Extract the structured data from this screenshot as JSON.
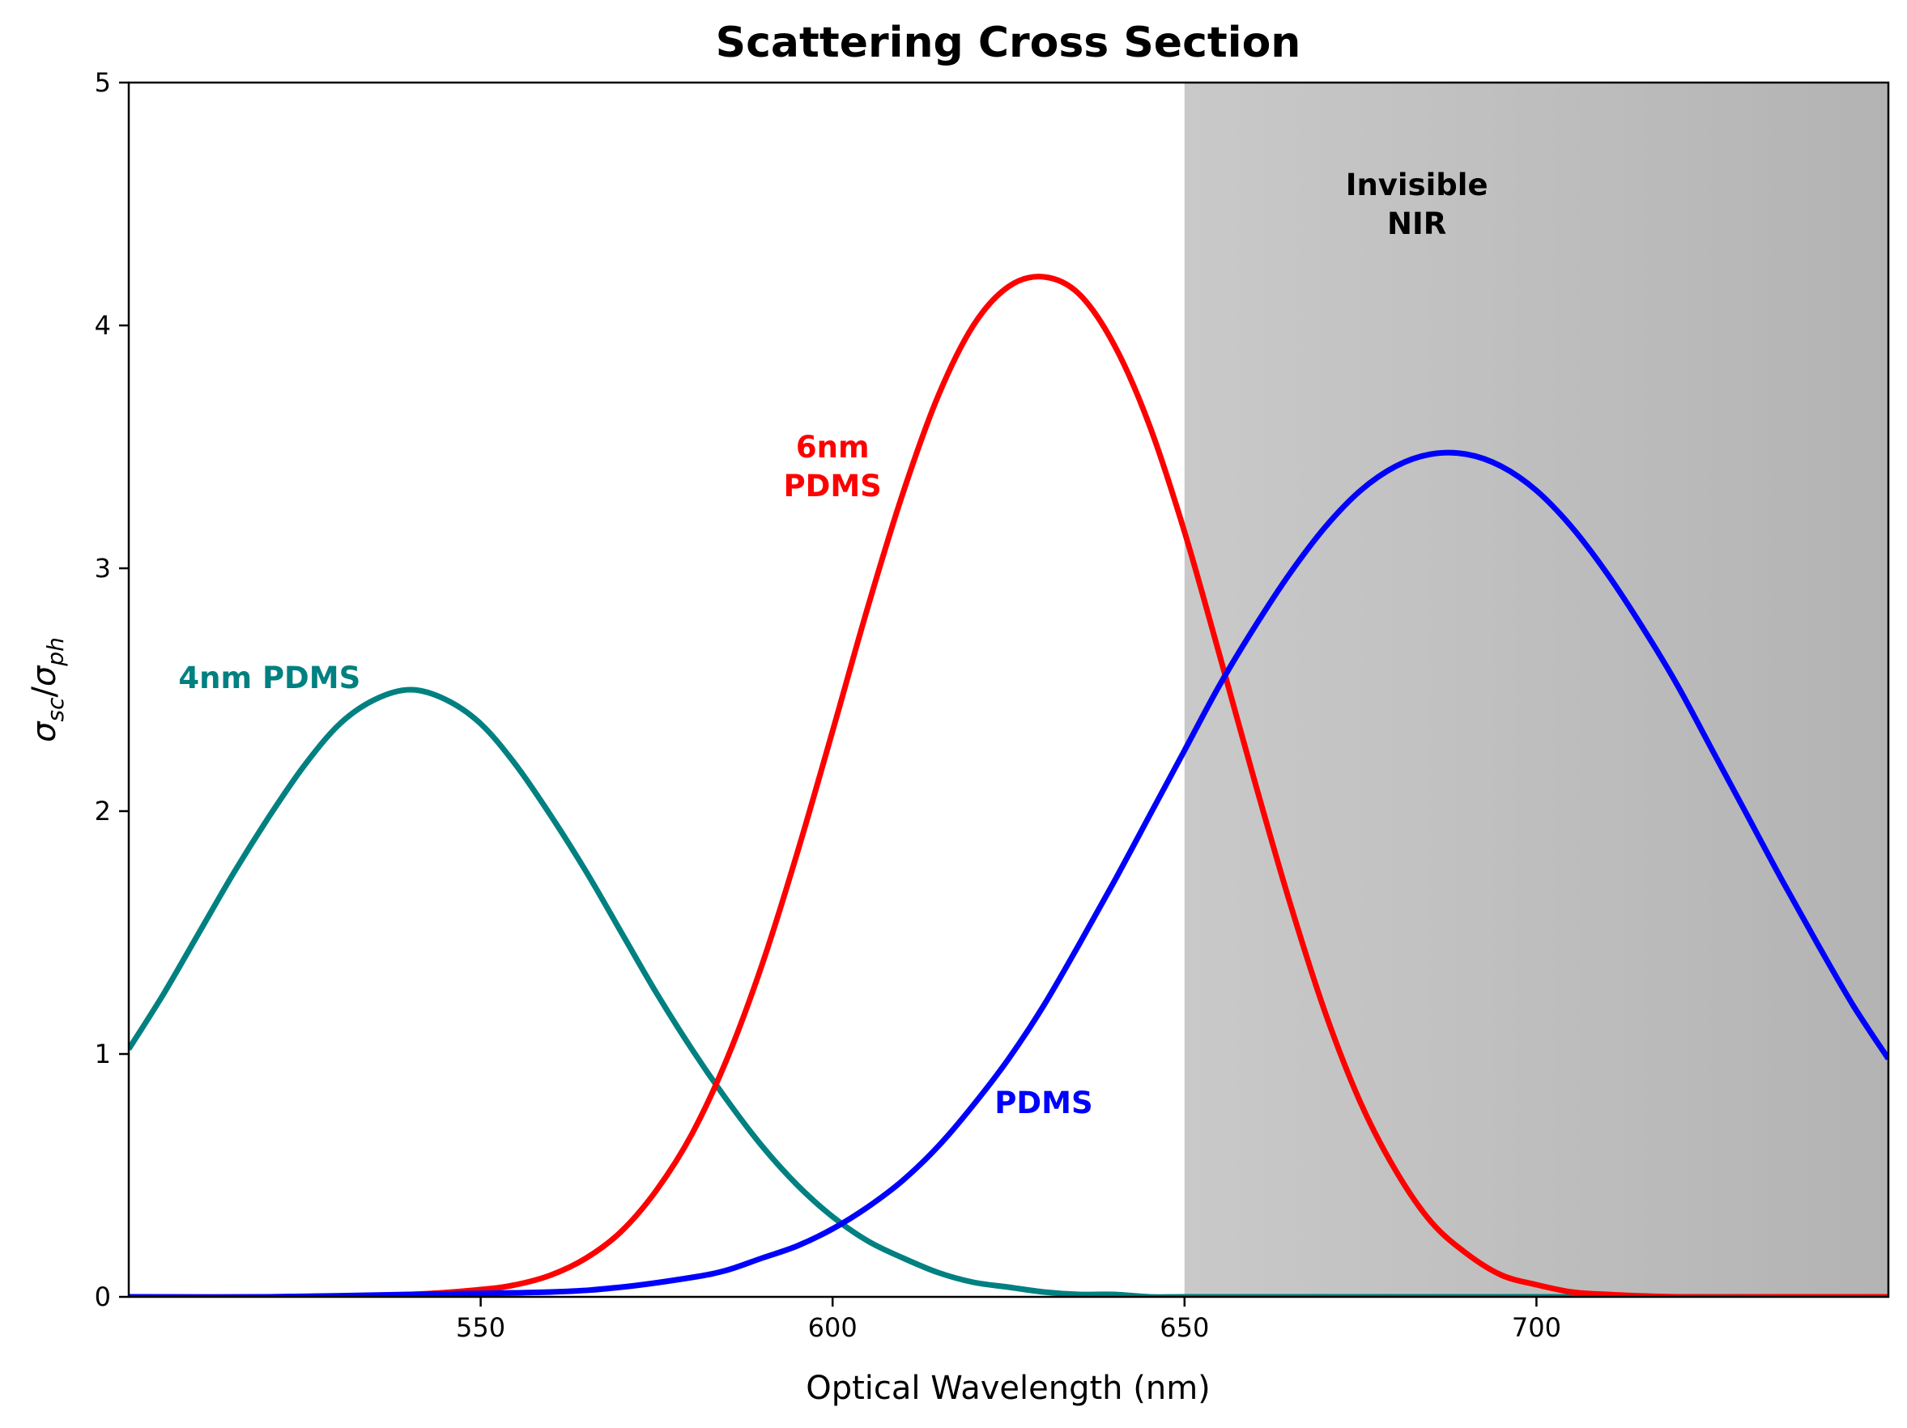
{
  "chart_data": {
    "type": "line",
    "title": "Scattering Cross Section",
    "xlabel": "Optical Wavelength (nm)",
    "ylabel_parts": {
      "sym1": "σ",
      "sub1": "sc",
      "slash": "/",
      "sym2": "σ",
      "sub2": "ph"
    },
    "xlim": [
      500,
      750
    ],
    "ylim": [
      0,
      5
    ],
    "xticks": [
      550,
      600,
      650,
      700
    ],
    "yticks": [
      0,
      1,
      2,
      3,
      4,
      5
    ],
    "grid": false,
    "shaded_region": {
      "x_start": 650,
      "x_end": 750,
      "label_lines": [
        "Invisible",
        "NIR"
      ],
      "label_x": 683,
      "label_y": 4.5,
      "color_left": "#c9c9c9",
      "color_right": "#b3b3b3"
    },
    "series": [
      {
        "name": "4nm PDMS",
        "color": "#008080",
        "label_lines": [
          "4nm PDMS"
        ],
        "label_x": 520,
        "label_y": 2.55,
        "x": [
          500,
          505,
          510,
          515,
          520,
          525,
          530,
          535,
          540,
          545,
          550,
          555,
          560,
          565,
          570,
          575,
          580,
          585,
          590,
          595,
          600,
          605,
          610,
          615,
          620,
          625,
          630,
          635,
          640,
          645,
          650,
          660,
          670,
          680,
          700,
          720,
          750
        ],
        "y": [
          1.02,
          1.25,
          1.5,
          1.75,
          1.98,
          2.19,
          2.36,
          2.46,
          2.5,
          2.46,
          2.36,
          2.19,
          1.98,
          1.75,
          1.5,
          1.25,
          1.02,
          0.81,
          0.62,
          0.46,
          0.33,
          0.23,
          0.16,
          0.1,
          0.06,
          0.04,
          0.02,
          0.01,
          0.01,
          0.0,
          0.0,
          0.0,
          0.0,
          0.0,
          0.0,
          0.0,
          0.0
        ]
      },
      {
        "name": "6nm PDMS",
        "color": "#ff0000",
        "label_lines": [
          "6nm",
          "PDMS"
        ],
        "label_x": 600,
        "label_y": 3.42,
        "x": [
          500,
          520,
          540,
          550,
          555,
          560,
          565,
          570,
          575,
          580,
          585,
          590,
          595,
          600,
          605,
          610,
          615,
          620,
          625,
          630,
          635,
          640,
          645,
          650,
          655,
          660,
          665,
          670,
          675,
          680,
          685,
          690,
          695,
          700,
          705,
          710,
          720,
          735,
          750
        ],
        "y": [
          0.0,
          0.0,
          0.01,
          0.03,
          0.05,
          0.09,
          0.16,
          0.27,
          0.44,
          0.67,
          0.98,
          1.37,
          1.83,
          2.33,
          2.84,
          3.31,
          3.71,
          4.0,
          4.16,
          4.2,
          4.13,
          3.92,
          3.59,
          3.15,
          2.64,
          2.12,
          1.62,
          1.17,
          0.8,
          0.52,
          0.31,
          0.18,
          0.09,
          0.05,
          0.02,
          0.01,
          0.0,
          0.0,
          0.0
        ]
      },
      {
        "name": "PDMS",
        "color": "#0000ff",
        "label_lines": [
          "PDMS"
        ],
        "label_x": 630,
        "label_y": 0.8,
        "x": [
          500,
          520,
          540,
          560,
          570,
          580,
          585,
          590,
          595,
          600,
          605,
          610,
          615,
          620,
          625,
          630,
          635,
          640,
          645,
          650,
          655,
          660,
          665,
          670,
          675,
          680,
          685,
          690,
          695,
          700,
          705,
          710,
          715,
          720,
          725,
          730,
          735,
          740,
          745,
          750
        ],
        "y": [
          0.0,
          0.0,
          0.01,
          0.02,
          0.04,
          0.08,
          0.11,
          0.16,
          0.21,
          0.28,
          0.37,
          0.48,
          0.62,
          0.79,
          0.98,
          1.2,
          1.45,
          1.71,
          1.98,
          2.25,
          2.52,
          2.76,
          2.98,
          3.17,
          3.32,
          3.42,
          3.47,
          3.47,
          3.42,
          3.32,
          3.17,
          2.98,
          2.76,
          2.52,
          2.25,
          1.98,
          1.71,
          1.45,
          1.2,
          0.98
        ]
      }
    ]
  }
}
